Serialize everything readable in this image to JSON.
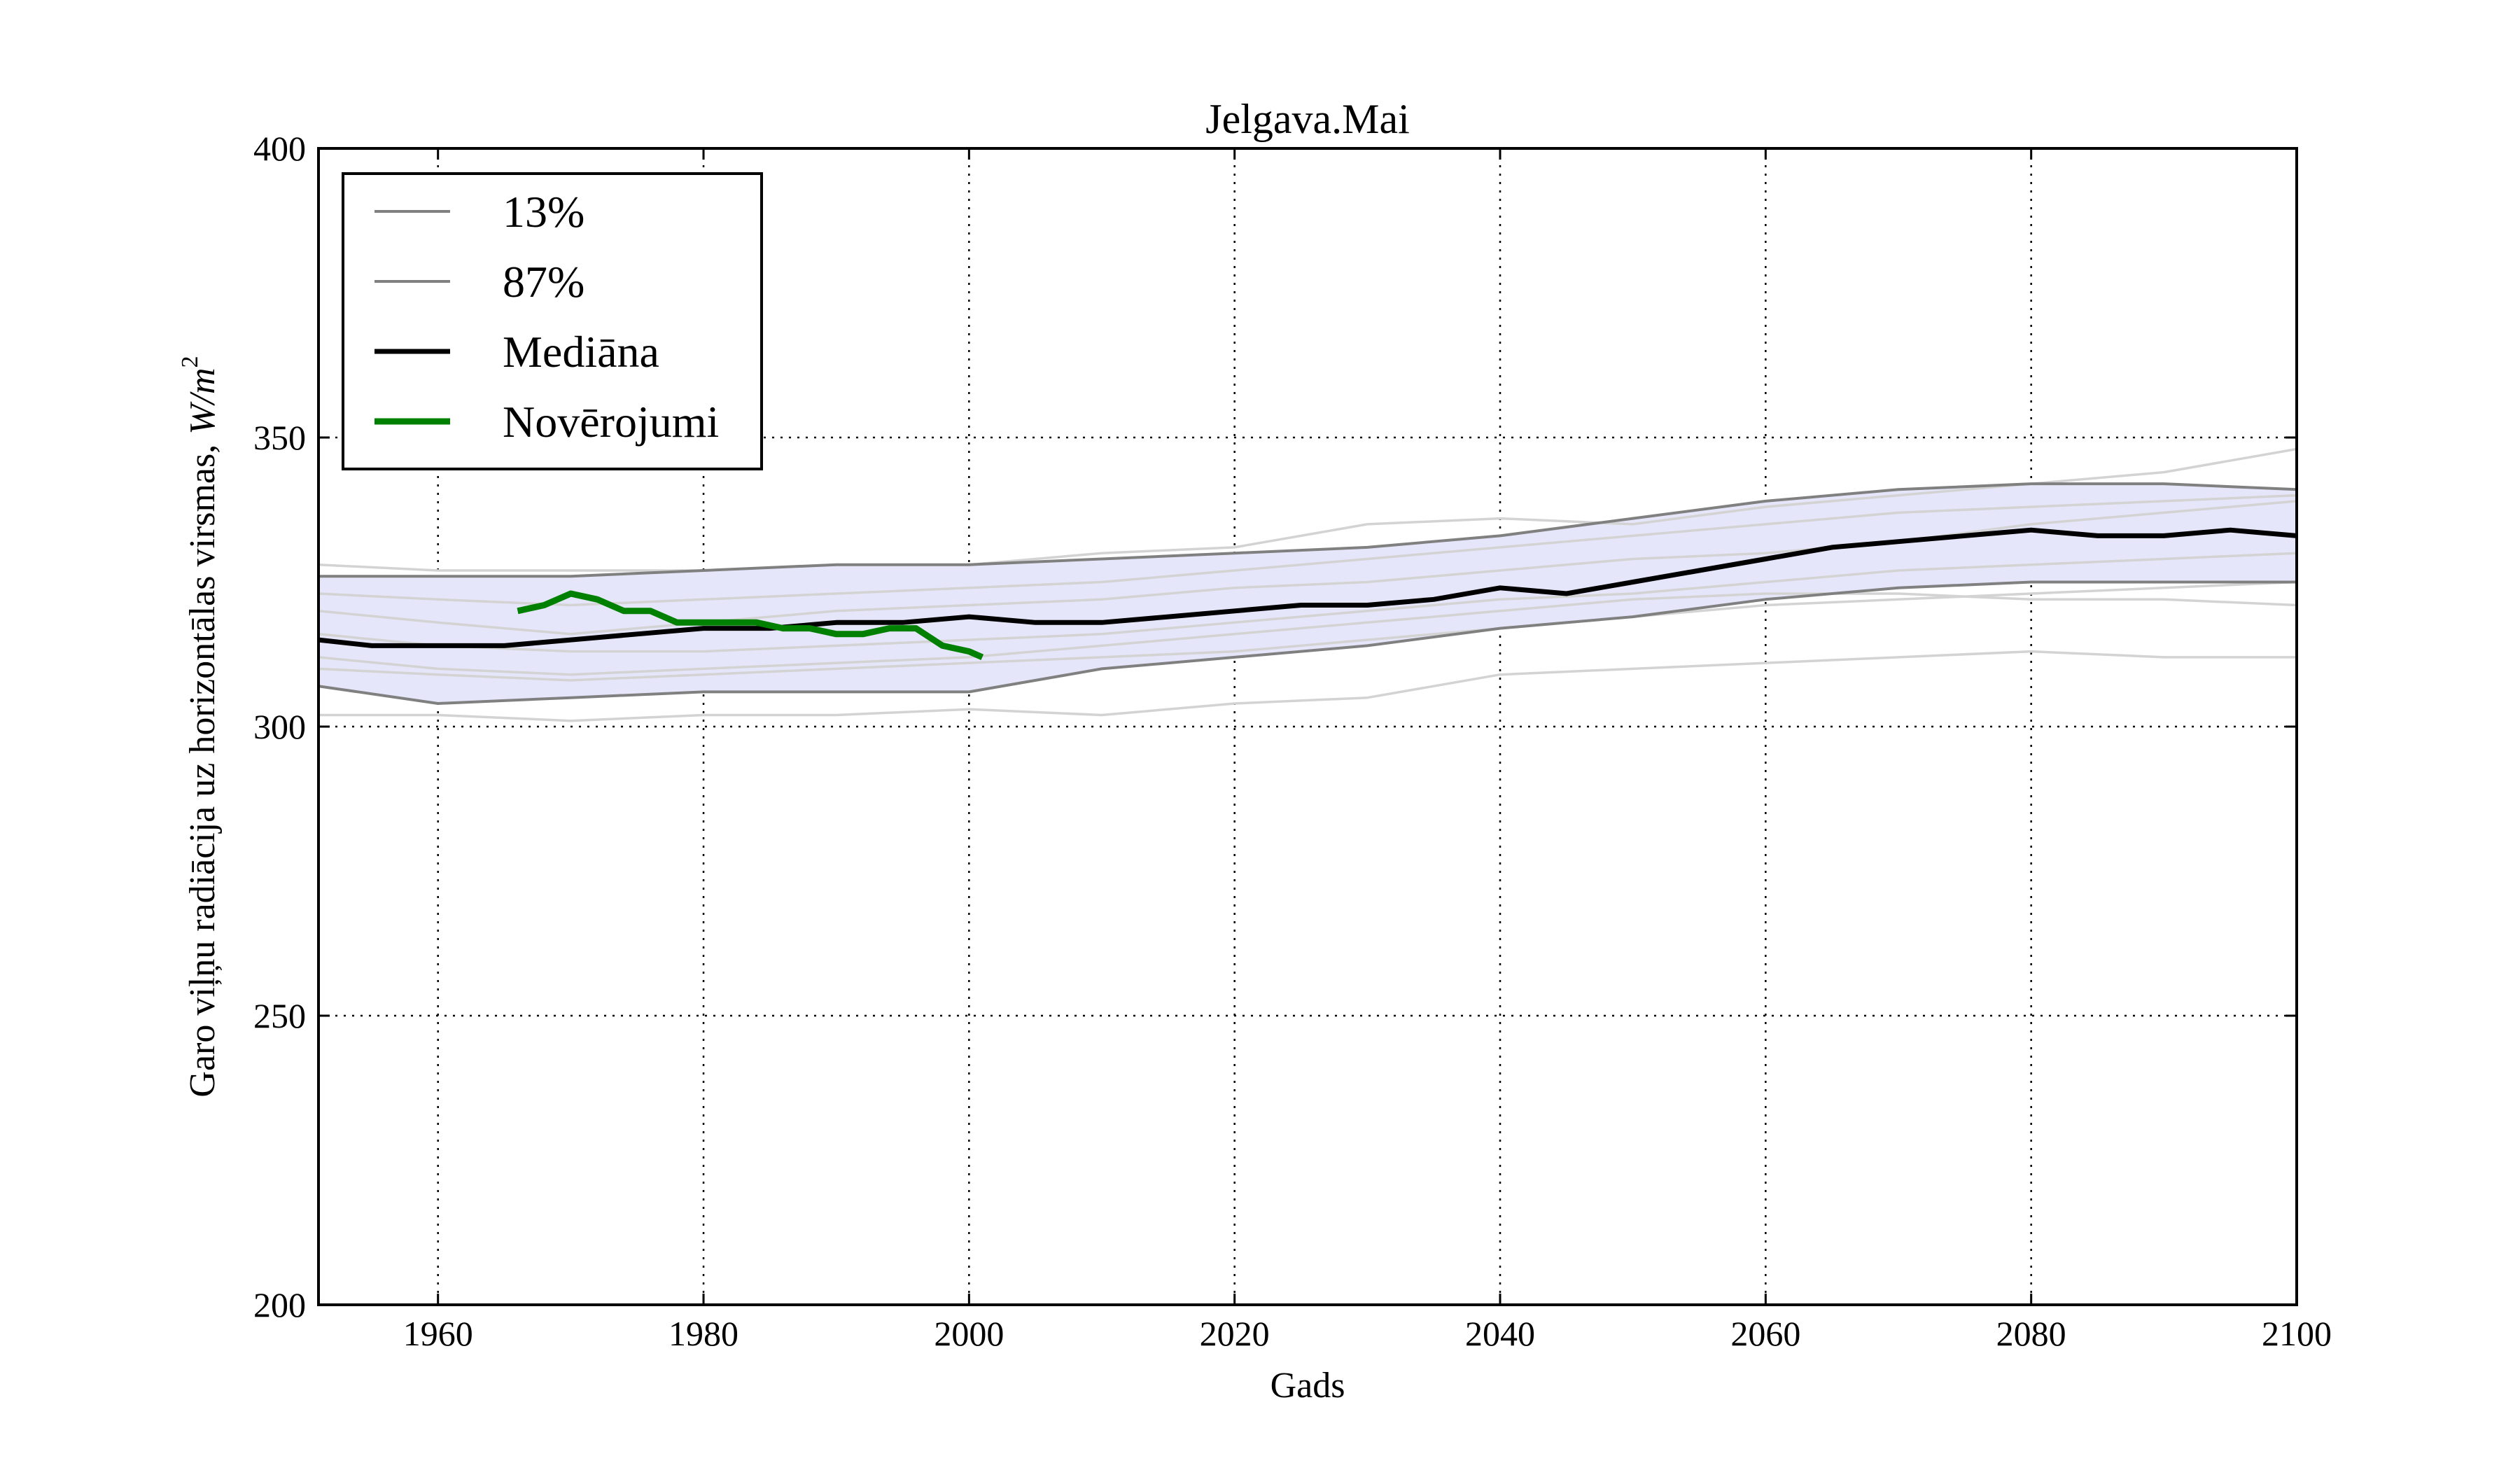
{
  "chart_data": {
    "type": "line",
    "title": "Jelgava.Mai",
    "xlabel": "Gads",
    "ylabel": "Garo viļņu radiācija uz horizontālas virsmas,",
    "ylabel_unit_base": "W/m",
    "ylabel_unit_exp": "2",
    "xlim": [
      1951,
      2100
    ],
    "ylim": [
      200,
      400
    ],
    "x_ticks": [
      "1960",
      "1980",
      "2000",
      "2020",
      "2040",
      "2060",
      "2080",
      "2100"
    ],
    "y_ticks": [
      "200",
      "250",
      "300",
      "350",
      "400"
    ],
    "grid": true,
    "legend_placement": "top-left",
    "band": {
      "color": "#e6e6fb",
      "x": [
        1951,
        1960,
        1970,
        1980,
        1990,
        2000,
        2010,
        2020,
        2030,
        2040,
        2050,
        2060,
        2070,
        2080,
        2090,
        2100
      ],
      "lower": [
        307,
        304,
        305,
        306,
        306,
        306,
        310,
        312,
        314,
        317,
        319,
        322,
        324,
        325,
        325,
        325
      ],
      "upper": [
        326,
        326,
        326,
        327,
        328,
        328,
        329,
        330,
        331,
        333,
        336,
        339,
        341,
        342,
        342,
        341
      ]
    },
    "series": [
      {
        "name": "13%",
        "color": "#808080",
        "width": 4,
        "x": [
          1951,
          1960,
          1970,
          1980,
          1990,
          2000,
          2010,
          2020,
          2030,
          2040,
          2050,
          2060,
          2070,
          2080,
          2090,
          2100
        ],
        "values": [
          307,
          304,
          305,
          306,
          306,
          306,
          310,
          312,
          314,
          317,
          319,
          322,
          324,
          325,
          325,
          325
        ]
      },
      {
        "name": "87%",
        "color": "#808080",
        "width": 4,
        "x": [
          1951,
          1960,
          1970,
          1980,
          1990,
          2000,
          2010,
          2020,
          2030,
          2040,
          2050,
          2060,
          2070,
          2080,
          2090,
          2100
        ],
        "values": [
          326,
          326,
          326,
          327,
          328,
          328,
          329,
          330,
          331,
          333,
          336,
          339,
          341,
          342,
          342,
          341
        ]
      },
      {
        "name": "Mediāna",
        "color": "#000000",
        "width": 7,
        "x": [
          1951,
          1955,
          1960,
          1965,
          1970,
          1975,
          1980,
          1985,
          1990,
          1995,
          2000,
          2005,
          2010,
          2015,
          2020,
          2025,
          2030,
          2035,
          2040,
          2045,
          2050,
          2055,
          2060,
          2065,
          2070,
          2075,
          2080,
          2085,
          2090,
          2095,
          2100
        ],
        "values": [
          315,
          314,
          314,
          314,
          315,
          316,
          317,
          317,
          318,
          318,
          319,
          318,
          318,
          319,
          320,
          321,
          321,
          322,
          324,
          323,
          325,
          327,
          329,
          331,
          332,
          333,
          334,
          333,
          333,
          334,
          333
        ]
      },
      {
        "name": "Novērojumi",
        "color": "#008000",
        "width": 9,
        "x": [
          1966,
          1968,
          1970,
          1972,
          1974,
          1976,
          1978,
          1980,
          1982,
          1984,
          1986,
          1988,
          1990,
          1992,
          1994,
          1996,
          1998,
          2000,
          2001
        ],
        "values": [
          320,
          321,
          323,
          322,
          320,
          320,
          318,
          318,
          318,
          318,
          317,
          317,
          316,
          316,
          317,
          317,
          314,
          313,
          312
        ]
      }
    ],
    "ensemble_color": "#d3d3d3",
    "ensemble": [
      {
        "x": [
          1951,
          1960,
          1970,
          1980,
          1990,
          2000,
          2010,
          2020,
          2030,
          2040,
          2050,
          2060,
          2070,
          2080,
          2090,
          2100
        ],
        "values": [
          302,
          302,
          301,
          302,
          302,
          303,
          302,
          304,
          305,
          309,
          310,
          311,
          312,
          313,
          312,
          312
        ]
      },
      {
        "x": [
          1951,
          1960,
          1970,
          1980,
          1990,
          2000,
          2010,
          2020,
          2030,
          2040,
          2050,
          2060,
          2070,
          2080,
          2090,
          2100
        ],
        "values": [
          328,
          327,
          327,
          327,
          328,
          328,
          330,
          331,
          335,
          336,
          335,
          338,
          340,
          342,
          344,
          348
        ]
      },
      {
        "x": [
          1951,
          1960,
          1970,
          1980,
          1990,
          2000,
          2010,
          2020,
          2030,
          2040,
          2050,
          2060,
          2070,
          2080,
          2090,
          2100
        ],
        "values": [
          312,
          310,
          309,
          310,
          311,
          312,
          314,
          316,
          318,
          320,
          322,
          323,
          323,
          322,
          322,
          321
        ]
      },
      {
        "x": [
          1951,
          1960,
          1970,
          1980,
          1990,
          2000,
          2010,
          2020,
          2030,
          2040,
          2050,
          2060,
          2070,
          2080,
          2090,
          2100
        ],
        "values": [
          320,
          318,
          316,
          318,
          320,
          321,
          322,
          324,
          325,
          327,
          329,
          330,
          332,
          335,
          337,
          339
        ]
      },
      {
        "x": [
          1951,
          1960,
          1970,
          1980,
          1990,
          2000,
          2010,
          2020,
          2030,
          2040,
          2050,
          2060,
          2070,
          2080,
          2090,
          2100
        ],
        "values": [
          316,
          314,
          313,
          313,
          314,
          315,
          316,
          318,
          320,
          322,
          323,
          325,
          327,
          328,
          329,
          330
        ]
      },
      {
        "x": [
          1951,
          1960,
          1970,
          1980,
          1990,
          2000,
          2010,
          2020,
          2030,
          2040,
          2050,
          2060,
          2070,
          2080,
          2090,
          2100
        ],
        "values": [
          323,
          322,
          321,
          322,
          323,
          324,
          325,
          327,
          329,
          331,
          333,
          335,
          337,
          338,
          339,
          340
        ]
      },
      {
        "x": [
          1951,
          1960,
          1970,
          1980,
          1990,
          2000,
          2010,
          2020,
          2030,
          2040,
          2050,
          2060,
          2070,
          2080,
          2090,
          2100
        ],
        "values": [
          310,
          309,
          308,
          309,
          310,
          311,
          312,
          313,
          315,
          317,
          319,
          321,
          322,
          323,
          324,
          325
        ]
      }
    ]
  }
}
